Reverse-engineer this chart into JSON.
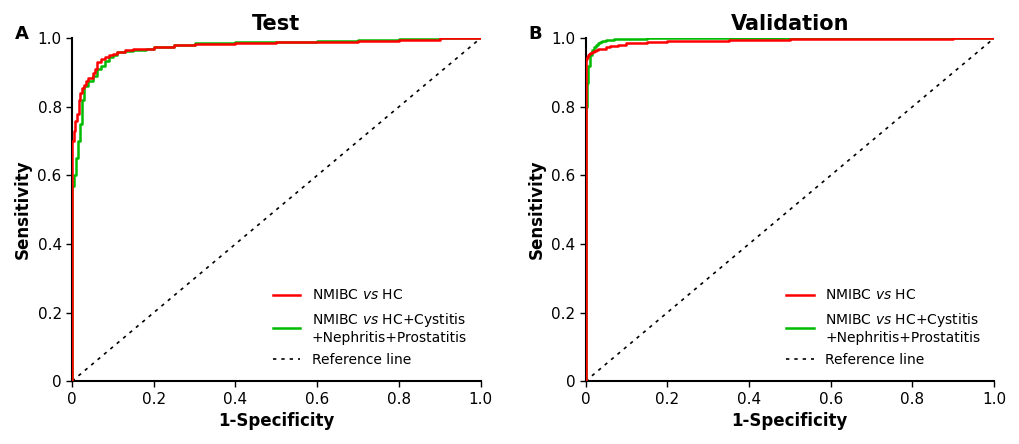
{
  "title_left": "Test",
  "title_right": "Validation",
  "label_A": "A",
  "label_B": "B",
  "xlabel": "1-Specificity",
  "ylabel": "Sensitivity",
  "xlim": [
    0,
    1.0
  ],
  "ylim": [
    0,
    1.0
  ],
  "xticks": [
    0,
    0.2,
    0.4,
    0.6,
    0.8,
    1.0
  ],
  "yticks": [
    0,
    0.2,
    0.4,
    0.6,
    0.8,
    1.0
  ],
  "color_red": "#FF0000",
  "color_green": "#00BB00",
  "color_ref": "#000000",
  "legend_line1_pre": "NMIBC ",
  "legend_line1_vs": "vs",
  "legend_line1_post": " HC",
  "legend_line2_pre": "NMIBC ",
  "legend_line2_vs": "vs",
  "legend_line2_post": " HC+Cystitis\n+Nephritis+Prostatitis",
  "legend_ref": "Reference line",
  "linewidth": 1.8,
  "title_fontsize": 15,
  "label_fontsize": 12,
  "tick_fontsize": 11,
  "legend_fontsize": 10,
  "panel_label_fontsize": 13,
  "background_color": "#FFFFFF",
  "test_red_fpr": [
    0.0,
    0.0,
    0.005,
    0.008,
    0.012,
    0.016,
    0.02,
    0.025,
    0.03,
    0.035,
    0.04,
    0.05,
    0.055,
    0.06,
    0.07,
    0.08,
    0.09,
    0.1,
    0.11,
    0.13,
    0.15,
    0.2,
    0.25,
    0.3,
    0.4,
    0.5,
    0.6,
    0.7,
    0.8,
    0.9,
    1.0
  ],
  "test_red_tpr": [
    0.0,
    0.55,
    0.7,
    0.73,
    0.76,
    0.78,
    0.82,
    0.84,
    0.855,
    0.865,
    0.875,
    0.885,
    0.9,
    0.91,
    0.93,
    0.94,
    0.945,
    0.95,
    0.955,
    0.96,
    0.965,
    0.97,
    0.975,
    0.98,
    0.983,
    0.985,
    0.988,
    0.99,
    0.993,
    0.996,
    1.0
  ],
  "test_green_fpr": [
    0.0,
    0.0,
    0.005,
    0.01,
    0.015,
    0.02,
    0.025,
    0.03,
    0.04,
    0.05,
    0.06,
    0.07,
    0.08,
    0.09,
    0.1,
    0.11,
    0.13,
    0.15,
    0.18,
    0.2,
    0.25,
    0.3,
    0.4,
    0.5,
    0.6,
    0.7,
    0.8,
    0.9,
    1.0
  ],
  "test_green_tpr": [
    0.0,
    0.38,
    0.57,
    0.6,
    0.65,
    0.7,
    0.75,
    0.82,
    0.86,
    0.875,
    0.89,
    0.91,
    0.92,
    0.935,
    0.945,
    0.95,
    0.96,
    0.963,
    0.967,
    0.97,
    0.975,
    0.98,
    0.985,
    0.988,
    0.99,
    0.992,
    0.994,
    0.997,
    1.0
  ],
  "val_red_fpr": [
    0.0,
    0.0,
    0.003,
    0.006,
    0.009,
    0.012,
    0.015,
    0.02,
    0.025,
    0.03,
    0.04,
    0.05,
    0.06,
    0.08,
    0.1,
    0.15,
    0.2,
    0.3,
    0.35,
    0.4,
    0.5,
    0.6,
    0.7,
    0.8,
    0.9,
    1.0
  ],
  "val_red_tpr": [
    0.0,
    0.93,
    0.94,
    0.945,
    0.95,
    0.955,
    0.958,
    0.961,
    0.963,
    0.965,
    0.968,
    0.97,
    0.973,
    0.977,
    0.98,
    0.985,
    0.988,
    0.991,
    0.992,
    0.994,
    0.996,
    0.997,
    0.998,
    0.999,
    0.999,
    1.0
  ],
  "val_green_fpr": [
    0.0,
    0.0,
    0.003,
    0.006,
    0.01,
    0.015,
    0.02,
    0.025,
    0.03,
    0.035,
    0.04,
    0.05,
    0.07,
    0.1,
    0.15,
    0.2,
    0.3,
    0.4,
    0.5,
    0.6,
    0.7,
    0.8,
    0.9,
    1.0
  ],
  "val_green_tpr": [
    0.0,
    0.6,
    0.8,
    0.87,
    0.92,
    0.95,
    0.965,
    0.975,
    0.98,
    0.985,
    0.99,
    0.993,
    0.996,
    0.998,
    0.999,
    1.0,
    1.0,
    1.0,
    1.0,
    1.0,
    1.0,
    1.0,
    1.0,
    1.0
  ]
}
